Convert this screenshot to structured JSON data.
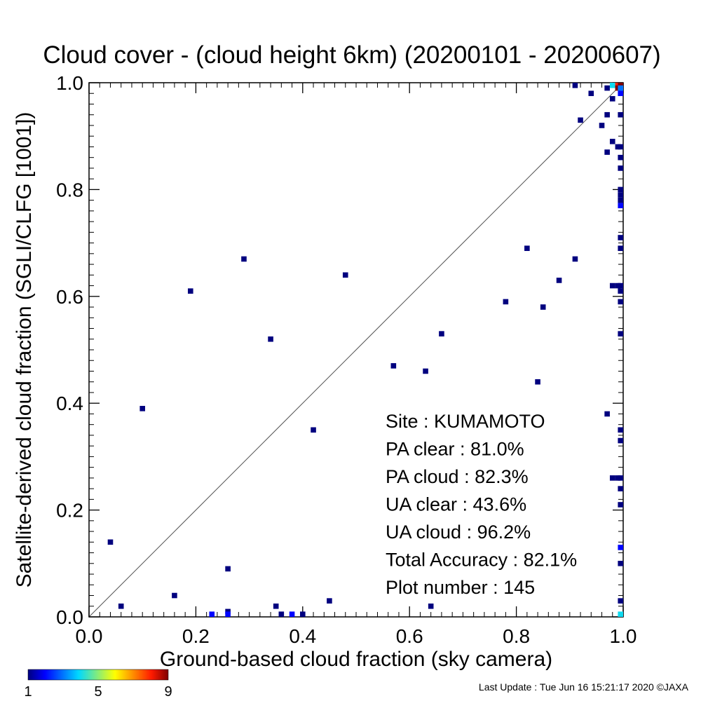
{
  "chart_data": {
    "type": "scatter",
    "title": "Cloud cover - (cloud height 6km)  (20200101 - 20200607)",
    "xlabel": "Ground-based cloud fraction (sky camera)",
    "ylabel": "Satellite-derived cloud fraction (SGLI/CLFG [1001])",
    "xlim": [
      0.0,
      1.0
    ],
    "ylim": [
      0.0,
      1.0
    ],
    "xticks": [
      "0.0",
      "0.2",
      "0.4",
      "0.6",
      "0.8",
      "1.0"
    ],
    "yticks": [
      "0.0",
      "0.2",
      "0.4",
      "0.6",
      "0.8",
      "1.0"
    ],
    "grid": false,
    "diagonal": true,
    "stats": [
      "Site : KUMAMOTO",
      "PA clear :  81.0%",
      "PA cloud :  82.3%",
      "UA clear :  43.6%",
      "UA cloud :  96.2%",
      "Total Accuracy :  82.1%",
      "Plot number :       145"
    ],
    "colorbar": {
      "min": 1,
      "max": 9,
      "tick_labels": [
        "1",
        "5",
        "9"
      ]
    },
    "points": [
      {
        "x": 0.04,
        "y": 0.14,
        "n": 1
      },
      {
        "x": 0.06,
        "y": 0.02,
        "n": 1
      },
      {
        "x": 0.1,
        "y": 0.39,
        "n": 1
      },
      {
        "x": 0.16,
        "y": 0.04,
        "n": 1
      },
      {
        "x": 0.19,
        "y": 0.61,
        "n": 1
      },
      {
        "x": 0.23,
        "y": 0.0,
        "n": 2
      },
      {
        "x": 0.26,
        "y": 0.09,
        "n": 1
      },
      {
        "x": 0.26,
        "y": 0.01,
        "n": 1
      },
      {
        "x": 0.26,
        "y": 0.0,
        "n": 2
      },
      {
        "x": 0.29,
        "y": 0.67,
        "n": 1
      },
      {
        "x": 0.34,
        "y": 0.52,
        "n": 1
      },
      {
        "x": 0.35,
        "y": 0.02,
        "n": 1
      },
      {
        "x": 0.36,
        "y": 0.0,
        "n": 1
      },
      {
        "x": 0.38,
        "y": 0.0,
        "n": 2
      },
      {
        "x": 0.4,
        "y": 0.0,
        "n": 1
      },
      {
        "x": 0.42,
        "y": 0.35,
        "n": 1
      },
      {
        "x": 0.45,
        "y": 0.03,
        "n": 1
      },
      {
        "x": 0.48,
        "y": 0.64,
        "n": 1
      },
      {
        "x": 0.57,
        "y": 0.47,
        "n": 1
      },
      {
        "x": 0.63,
        "y": 0.46,
        "n": 1
      },
      {
        "x": 0.64,
        "y": 0.02,
        "n": 1
      },
      {
        "x": 0.66,
        "y": 0.53,
        "n": 1
      },
      {
        "x": 0.78,
        "y": 0.59,
        "n": 1
      },
      {
        "x": 0.82,
        "y": 0.69,
        "n": 1
      },
      {
        "x": 0.84,
        "y": 0.44,
        "n": 1
      },
      {
        "x": 0.85,
        "y": 0.58,
        "n": 1
      },
      {
        "x": 0.88,
        "y": 0.63,
        "n": 1
      },
      {
        "x": 0.91,
        "y": 0.67,
        "n": 1
      },
      {
        "x": 0.91,
        "y": 1.0,
        "n": 1
      },
      {
        "x": 0.92,
        "y": 0.93,
        "n": 1
      },
      {
        "x": 0.94,
        "y": 0.98,
        "n": 1
      },
      {
        "x": 0.96,
        "y": 0.92,
        "n": 1
      },
      {
        "x": 0.97,
        "y": 0.94,
        "n": 1
      },
      {
        "x": 0.97,
        "y": 0.87,
        "n": 1
      },
      {
        "x": 0.97,
        "y": 0.38,
        "n": 1
      },
      {
        "x": 0.97,
        "y": 0.99,
        "n": 1
      },
      {
        "x": 0.98,
        "y": 1.0,
        "n": 4
      },
      {
        "x": 0.98,
        "y": 0.97,
        "n": 1
      },
      {
        "x": 0.98,
        "y": 0.89,
        "n": 1
      },
      {
        "x": 0.98,
        "y": 0.62,
        "n": 1
      },
      {
        "x": 0.98,
        "y": 0.26,
        "n": 1
      },
      {
        "x": 0.99,
        "y": 1.0,
        "n": 8
      },
      {
        "x": 0.99,
        "y": 0.99,
        "n": 9
      },
      {
        "x": 0.99,
        "y": 0.88,
        "n": 1
      },
      {
        "x": 0.99,
        "y": 0.62,
        "n": 1
      },
      {
        "x": 0.99,
        "y": 0.26,
        "n": 1
      },
      {
        "x": 1.0,
        "y": 1.0,
        "n": 9
      },
      {
        "x": 1.0,
        "y": 0.99,
        "n": 3
      },
      {
        "x": 1.0,
        "y": 0.98,
        "n": 2
      },
      {
        "x": 1.0,
        "y": 0.94,
        "n": 1
      },
      {
        "x": 1.0,
        "y": 0.88,
        "n": 1
      },
      {
        "x": 1.0,
        "y": 0.86,
        "n": 1
      },
      {
        "x": 1.0,
        "y": 0.84,
        "n": 1
      },
      {
        "x": 1.0,
        "y": 0.8,
        "n": 1
      },
      {
        "x": 1.0,
        "y": 0.79,
        "n": 1
      },
      {
        "x": 1.0,
        "y": 0.78,
        "n": 1
      },
      {
        "x": 1.0,
        "y": 0.77,
        "n": 2
      },
      {
        "x": 1.0,
        "y": 0.71,
        "n": 1
      },
      {
        "x": 1.0,
        "y": 0.69,
        "n": 1
      },
      {
        "x": 1.0,
        "y": 0.62,
        "n": 1
      },
      {
        "x": 1.0,
        "y": 0.61,
        "n": 1
      },
      {
        "x": 1.0,
        "y": 0.59,
        "n": 1
      },
      {
        "x": 1.0,
        "y": 0.53,
        "n": 1
      },
      {
        "x": 1.0,
        "y": 0.35,
        "n": 1
      },
      {
        "x": 1.0,
        "y": 0.33,
        "n": 1
      },
      {
        "x": 1.0,
        "y": 0.26,
        "n": 1
      },
      {
        "x": 1.0,
        "y": 0.24,
        "n": 1
      },
      {
        "x": 1.0,
        "y": 0.21,
        "n": 1
      },
      {
        "x": 1.0,
        "y": 0.13,
        "n": 2
      },
      {
        "x": 1.0,
        "y": 0.1,
        "n": 1
      },
      {
        "x": 1.0,
        "y": 0.03,
        "n": 1
      },
      {
        "x": 1.0,
        "y": 0.0,
        "n": 4
      }
    ]
  },
  "footer": "Last Update : Tue Jun 16 15:21:17 2020  ©JAXA"
}
